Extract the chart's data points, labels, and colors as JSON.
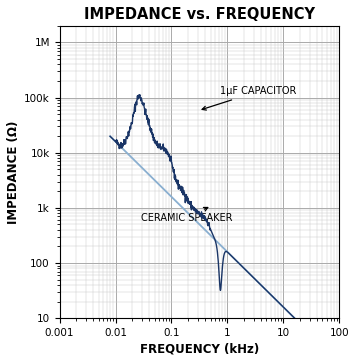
{
  "title": "IMPEDANCE vs. FREQUENCY",
  "xlabel": "FREQUENCY (kHz)",
  "ylabel": "IMPEDANCE (Ω)",
  "xlim": [
    0.001,
    100
  ],
  "ylim": [
    10,
    2000000
  ],
  "background_color": "#ffffff",
  "border_color": "#000000",
  "grid_major_color": "#aaaaaa",
  "grid_minor_color": "#cccccc",
  "capacitor_color": "#8aafd0",
  "speaker_color": "#1a3566",
  "annotation_capacitor": "1μF CAPACITOR",
  "annotation_speaker": "CERAMIC SPEAKER",
  "title_fontsize": 10.5,
  "label_fontsize": 8.5,
  "tick_fontsize": 7.5
}
